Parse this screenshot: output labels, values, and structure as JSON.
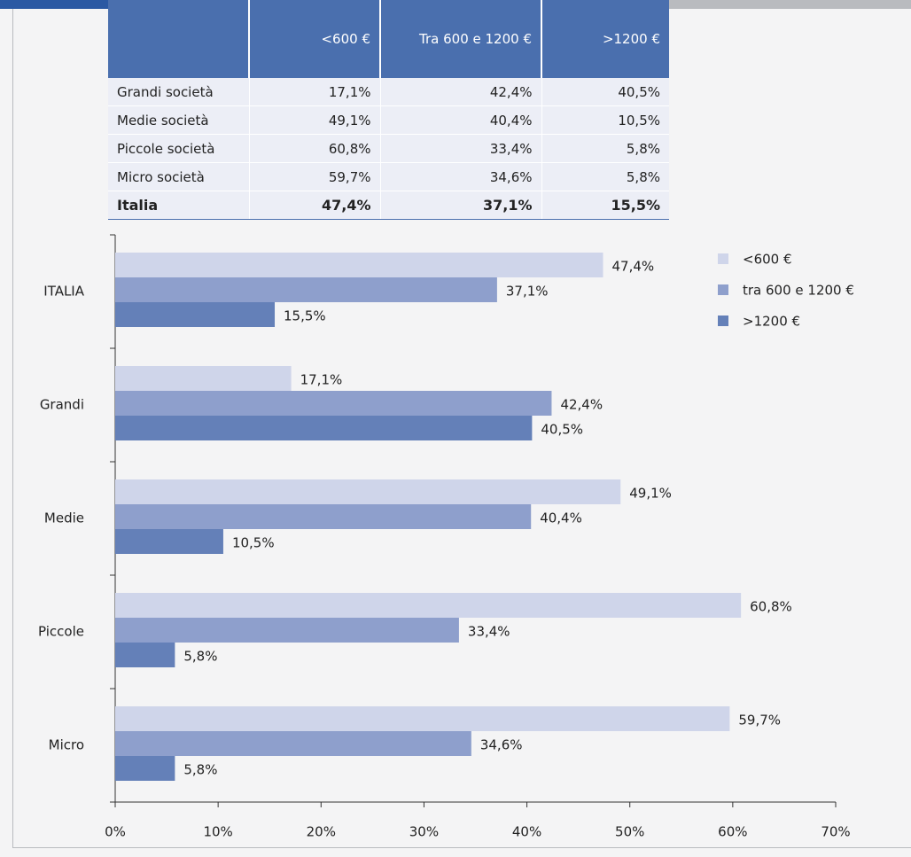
{
  "table": {
    "header": [
      "<600 €",
      "Tra 600 e 1200 €",
      ">1200 €"
    ],
    "rows": [
      [
        "Grandi società",
        "17,1%",
        "42,4%",
        "40,5%"
      ],
      [
        "Medie società",
        "49,1%",
        "40,4%",
        "10,5%"
      ],
      [
        "Piccole società",
        "60,8%",
        "33,4%",
        "5,8%"
      ],
      [
        "Micro società",
        "59,7%",
        "34,6%",
        "5,8%"
      ],
      [
        "Italia",
        "47,4%",
        "37,1%",
        "15,5%"
      ]
    ]
  },
  "chart_data": {
    "type": "bar",
    "orientation": "horizontal",
    "categories": [
      "ITALIA",
      "Grandi",
      "Medie",
      "Piccole",
      "Micro"
    ],
    "series": [
      {
        "name": "<600 €",
        "color": "#cfd5ea",
        "values": [
          47.4,
          17.1,
          49.1,
          60.8,
          59.7
        ],
        "value_labels": [
          "47,4%",
          "17,1%",
          "49,1%",
          "60,8%",
          "59,7%"
        ]
      },
      {
        "name": "tra 600 e 1200 €",
        "color": "#8e9fcc",
        "values": [
          37.1,
          42.4,
          40.4,
          33.4,
          34.6
        ],
        "value_labels": [
          "37,1%",
          "42,4%",
          "40,4%",
          "33,4%",
          "34,6%"
        ]
      },
      {
        "name": ">1200 €",
        "color": "#6480b8",
        "values": [
          15.5,
          40.5,
          10.5,
          5.8,
          5.8
        ],
        "value_labels": [
          "15,5%",
          "40,5%",
          "10,5%",
          "5,8%",
          "5,8%"
        ]
      }
    ],
    "xlim": [
      0,
      70
    ],
    "xticks": [
      {
        "value": 0,
        "label": "0%"
      },
      {
        "value": 10,
        "label": "10%"
      },
      {
        "value": 20,
        "label": "20%"
      },
      {
        "value": 30,
        "label": "30%"
      },
      {
        "value": 40,
        "label": "40%"
      },
      {
        "value": 50,
        "label": "50%"
      },
      {
        "value": 60,
        "label": "60%"
      },
      {
        "value": 70,
        "label": "70%"
      }
    ],
    "legend": "top-right"
  }
}
